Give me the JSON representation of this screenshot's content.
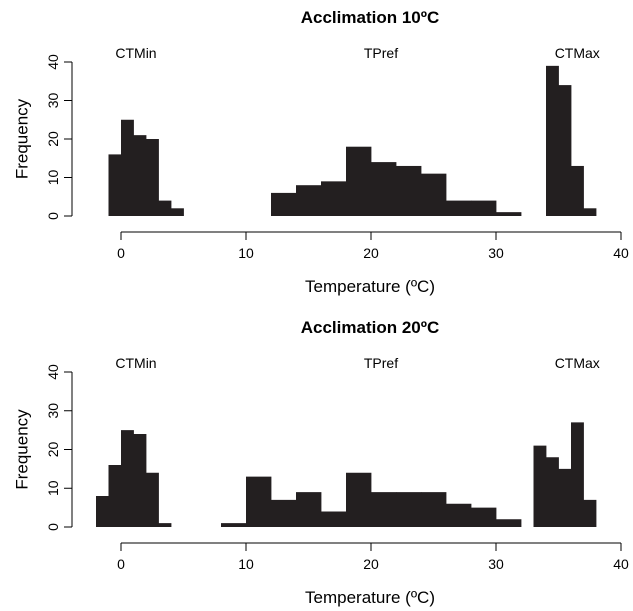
{
  "chart_data": [
    {
      "type": "bar",
      "title": "Acclimation 10ºC",
      "xlabel": "Temperature (ºC)",
      "ylabel": "Frequency",
      "xlim": [
        -2,
        40
      ],
      "ylim": [
        0,
        40
      ],
      "xticks": [
        0,
        10,
        20,
        30,
        40
      ],
      "yticks": [
        0,
        10,
        20,
        30,
        40
      ],
      "annotations": [
        {
          "text": "CTMin",
          "x": 1.2
        },
        {
          "text": "TPref",
          "x": 20.8
        },
        {
          "text": "CTMax",
          "x": 36.5
        }
      ],
      "series": [
        {
          "bins": [
            {
              "x0": -1,
              "x1": 0,
              "count": 16
            },
            {
              "x0": 0,
              "x1": 1,
              "count": 25
            },
            {
              "x0": 1,
              "x1": 2,
              "count": 21
            },
            {
              "x0": 2,
              "x1": 3,
              "count": 20
            },
            {
              "x0": 3,
              "x1": 4,
              "count": 4
            },
            {
              "x0": 4,
              "x1": 5,
              "count": 2
            }
          ]
        },
        {
          "bins": [
            {
              "x0": 12,
              "x1": 14,
              "count": 6
            },
            {
              "x0": 14,
              "x1": 16,
              "count": 8
            },
            {
              "x0": 16,
              "x1": 18,
              "count": 9
            },
            {
              "x0": 18,
              "x1": 20,
              "count": 18
            },
            {
              "x0": 20,
              "x1": 22,
              "count": 14
            },
            {
              "x0": 22,
              "x1": 24,
              "count": 13
            },
            {
              "x0": 24,
              "x1": 26,
              "count": 11
            },
            {
              "x0": 26,
              "x1": 28,
              "count": 4
            },
            {
              "x0": 28,
              "x1": 30,
              "count": 4
            },
            {
              "x0": 30,
              "x1": 32,
              "count": 1
            }
          ]
        },
        {
          "bins": [
            {
              "x0": 34,
              "x1": 35,
              "count": 39
            },
            {
              "x0": 35,
              "x1": 36,
              "count": 34
            },
            {
              "x0": 36,
              "x1": 37,
              "count": 13
            },
            {
              "x0": 37,
              "x1": 38,
              "count": 2
            }
          ]
        }
      ]
    },
    {
      "type": "bar",
      "title": "Acclimation 20ºC",
      "xlabel": "Temperature (ºC)",
      "ylabel": "Frequency",
      "xlim": [
        -2,
        40
      ],
      "ylim": [
        0,
        40
      ],
      "xticks": [
        0,
        10,
        20,
        30,
        40
      ],
      "yticks": [
        0,
        10,
        20,
        30,
        40
      ],
      "annotations": [
        {
          "text": "CTMin",
          "x": 1.2
        },
        {
          "text": "TPref",
          "x": 20.8
        },
        {
          "text": "CTMax",
          "x": 36.5
        }
      ],
      "series": [
        {
          "bins": [
            {
              "x0": -2,
              "x1": -1,
              "count": 8
            },
            {
              "x0": -1,
              "x1": 0,
              "count": 16
            },
            {
              "x0": 0,
              "x1": 1,
              "count": 25
            },
            {
              "x0": 1,
              "x1": 2,
              "count": 24
            },
            {
              "x0": 2,
              "x1": 3,
              "count": 14
            },
            {
              "x0": 3,
              "x1": 4,
              "count": 1
            }
          ]
        },
        {
          "bins": [
            {
              "x0": 8,
              "x1": 10,
              "count": 1
            },
            {
              "x0": 10,
              "x1": 12,
              "count": 13
            },
            {
              "x0": 12,
              "x1": 14,
              "count": 7
            },
            {
              "x0": 14,
              "x1": 16,
              "count": 9
            },
            {
              "x0": 16,
              "x1": 18,
              "count": 4
            },
            {
              "x0": 18,
              "x1": 20,
              "count": 14
            },
            {
              "x0": 20,
              "x1": 22,
              "count": 9
            },
            {
              "x0": 22,
              "x1": 24,
              "count": 9
            },
            {
              "x0": 24,
              "x1": 26,
              "count": 9
            },
            {
              "x0": 26,
              "x1": 28,
              "count": 6
            },
            {
              "x0": 28,
              "x1": 30,
              "count": 5
            },
            {
              "x0": 30,
              "x1": 32,
              "count": 2
            }
          ]
        },
        {
          "bins": [
            {
              "x0": 33,
              "x1": 34,
              "count": 21
            },
            {
              "x0": 34,
              "x1": 35,
              "count": 18
            },
            {
              "x0": 35,
              "x1": 36,
              "count": 15
            },
            {
              "x0": 36,
              "x1": 37,
              "count": 27
            },
            {
              "x0": 37,
              "x1": 38,
              "count": 7
            }
          ]
        }
      ]
    }
  ]
}
